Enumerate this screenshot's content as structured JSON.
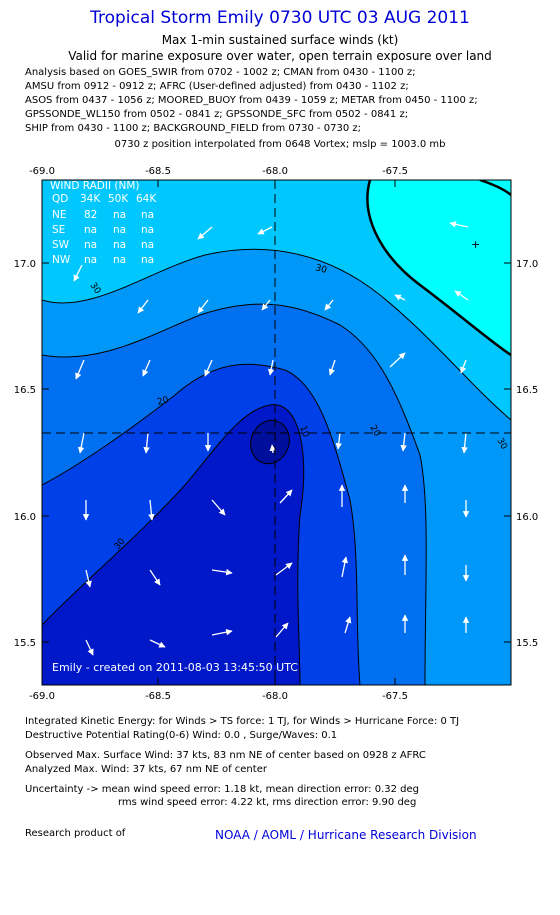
{
  "header": {
    "title": "Tropical Storm Emily 0730 UTC 03 AUG 2011",
    "subtitle1": "Max 1-min sustained surface winds (kt)",
    "subtitle2": "Valid for marine exposure over water, open terrain exposure over land",
    "analysis_lines": [
      "Analysis based on GOES_SWIR from 0702 - 1002 z; CMAN from 0430 - 1100 z;",
      "AMSU from 0912 - 0912 z; AFRC (User-defined adjusted) from 0430 - 1102 z;",
      "ASOS from 0437 - 1056 z; MOORED_BUOY from 0439 - 1059 z; METAR from 0450 - 1100 z;",
      "GPSSONDE_WL150 from 0502 - 0841 z; GPSSONDE_SFC from 0502 - 0841 z;",
      "SHIP from 0430 - 1100 z; BACKGROUND_FIELD from 0730 - 0730 z;"
    ],
    "position_line": "0730 z position interpolated from 0648 Vortex; mslp = 1003.0 mb"
  },
  "map": {
    "lon_ticks": [
      "-69.0",
      "-68.5",
      "-68.0",
      "-67.5"
    ],
    "lat_ticks": [
      "17.0",
      "16.5",
      "16.0",
      "15.5"
    ],
    "contour_labels": [
      "30",
      "30",
      "20",
      "20",
      "10",
      "30",
      "30"
    ],
    "center_marker": "+",
    "created_text": "Emily - created on 2011-08-03 13:45:50 UTC",
    "wind_radii": {
      "title": "WIND RADII (NM)",
      "header": [
        "QD",
        "34K",
        "50K",
        "64K"
      ],
      "rows": [
        [
          "NE",
          "82",
          "na",
          "na"
        ],
        [
          "SE",
          "na",
          "na",
          "na"
        ],
        [
          "SW",
          "na",
          "na",
          "na"
        ],
        [
          "NW",
          "na",
          "na",
          "na"
        ]
      ]
    },
    "colors": {
      "band_40_plus": "#0018c8",
      "band_30_40": "#0040e8",
      "band_20_30": "#0070f0",
      "band_10_20": "#0098f8",
      "band_0_10": "#00c8ff",
      "band_high_ne": "#00ffff",
      "arrows": "#ffffff",
      "contours": "#000000"
    }
  },
  "footer": {
    "ike": "Integrated Kinetic Energy:  for Winds > TS force: 1 TJ,  for Winds > Hurricane Force: 0 TJ",
    "dpr": "Destructive Potential Rating(0-6)   Wind: 0.0 , Surge/Waves: 0.1",
    "observed": "Observed Max. Surface Wind: 37 kts, 83 nm NE of center based on 0928 z AFRC",
    "analyzed": "Analyzed Max. Wind: 37 kts, 67 nm NE of center",
    "uncertainty1": "Uncertainty -> mean wind speed error: 1.18 kt,   mean direction error: 0.32 deg",
    "uncertainty2": "rms wind speed error: 4.22 kt,   rms direction error: 9.90 deg",
    "research": "Research product of",
    "credit": "NOAA / AOML / Hurricane Research Division"
  }
}
